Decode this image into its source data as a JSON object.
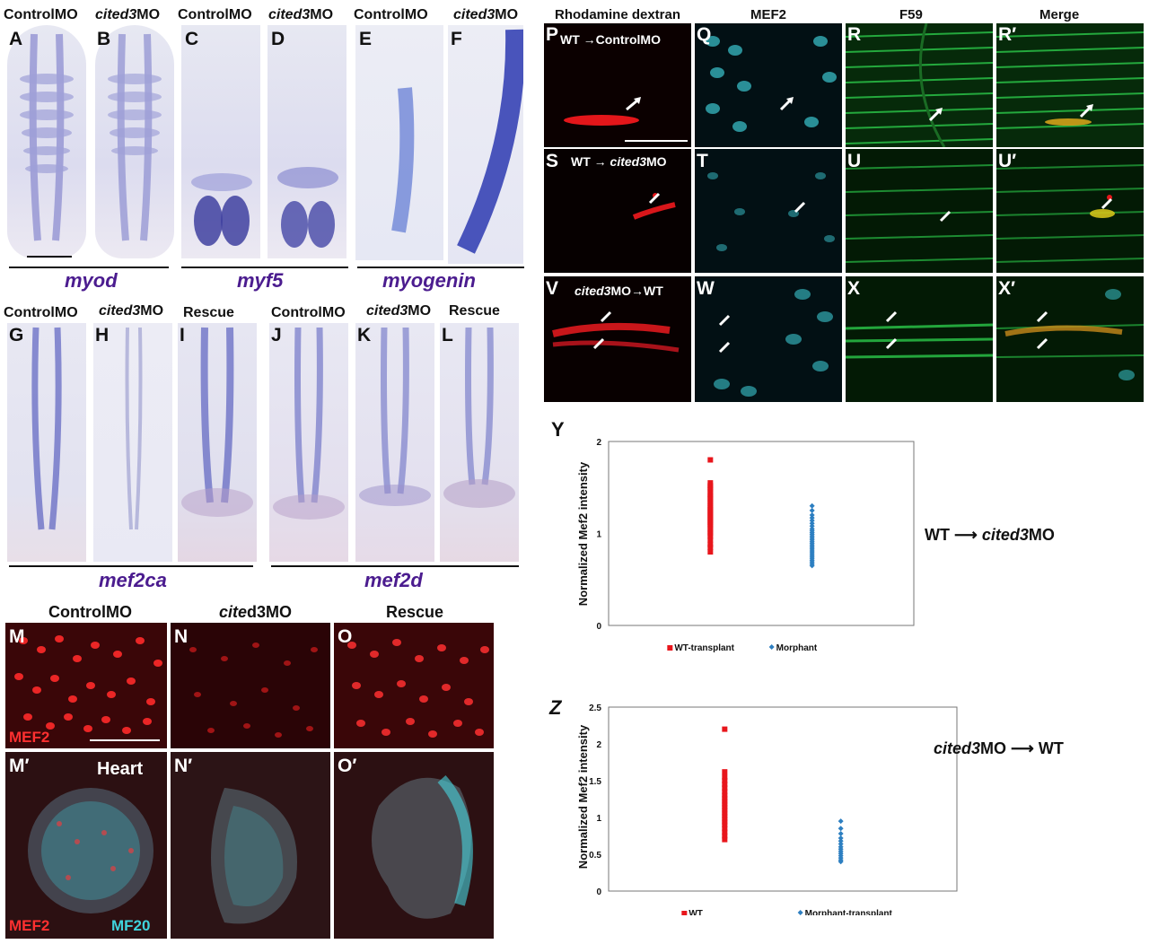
{
  "panel_letters": {
    "A": "A",
    "B": "B",
    "C": "C",
    "D": "D",
    "E": "E",
    "F": "F",
    "G": "G",
    "H": "H",
    "I": "I",
    "J": "J",
    "K": "K",
    "L": "L",
    "M": "M",
    "N": "N",
    "O": "O",
    "Mp": "M′",
    "Np": "N′",
    "Op": "O′",
    "P": "P",
    "Q": "Q",
    "R": "R",
    "Rp": "R′",
    "S": "S",
    "T": "T",
    "U": "U",
    "Up": "U′",
    "V": "V",
    "W": "W",
    "X": "X",
    "Xp": "X′",
    "Y": "Y",
    "Z": "Z"
  },
  "conditions": {
    "control": "ControlMO",
    "cited_italic": "cited3",
    "mo_suffix": "MO",
    "rescue": "Rescue",
    "cite_italic": "cite",
    "d3mo": "d3MO",
    "wt": "WT"
  },
  "genes": {
    "myod": "myod",
    "myf5": "myf5",
    "myogenin": "myogenin",
    "mef2ca": "mef2ca",
    "mef2d": "mef2d"
  },
  "stain_labels": {
    "mef2": "MEF2",
    "mf20": "MF20",
    "heart": "Heart"
  },
  "column_headers": {
    "rhodamine": "Rhodamine dextran",
    "mef2": "MEF2",
    "f59": "F59",
    "merge": "Merge"
  },
  "transplant_labels": {
    "wt_control": "ControlMO",
    "arrow": "→"
  },
  "colors": {
    "ish_stain": "#3b3ea6",
    "gene_label": "#4b1c8f",
    "red_series": "#e8161c",
    "blue_series": "#2d7fc1",
    "cyan": "#3fd3dc",
    "green": "#2cc94a"
  },
  "chart_data": [
    {
      "type": "scatter",
      "panel": "Y",
      "ylabel": "Normalized Mef2 intensity",
      "ylim": [
        0,
        2
      ],
      "yticks": [
        "0",
        "1",
        "2"
      ],
      "grid": false,
      "legend_position": "bottom",
      "side_label_prefix": "WT",
      "side_label_target_italic": "cited3",
      "side_label_target_suffix": "MO",
      "series": [
        {
          "name": "WT-transplant",
          "color": "#e8161c",
          "marker": "square",
          "values": [
            1.8,
            1.55,
            1.52,
            1.5,
            1.48,
            1.45,
            1.42,
            1.4,
            1.38,
            1.35,
            1.33,
            1.3,
            1.28,
            1.26,
            1.24,
            1.22,
            1.2,
            1.18,
            1.16,
            1.14,
            1.12,
            1.1,
            1.08,
            1.05,
            1.02,
            1.0,
            0.97,
            0.93,
            0.88,
            0.85,
            0.8
          ]
        },
        {
          "name": "Morphant",
          "color": "#2d7fc1",
          "marker": "diamond",
          "values": [
            1.3,
            1.25,
            1.2,
            1.17,
            1.14,
            1.11,
            1.08,
            1.05,
            1.03,
            1.01,
            0.99,
            0.97,
            0.95,
            0.93,
            0.91,
            0.89,
            0.87,
            0.85,
            0.83,
            0.81,
            0.79,
            0.77,
            0.75,
            0.73,
            0.71,
            0.69,
            0.67,
            0.65
          ]
        }
      ]
    },
    {
      "type": "scatter",
      "panel": "Z",
      "ylabel": "Normalized Mef2 intensity",
      "ylim": [
        0,
        2.5
      ],
      "yticks": [
        "0",
        "0.5",
        "1",
        "1.5",
        "2",
        "2.5"
      ],
      "grid": false,
      "legend_position": "bottom",
      "side_label_source_italic": "cited3",
      "side_label_source_suffix": "MO",
      "side_label_target": "WT",
      "series": [
        {
          "name": "WT",
          "color": "#e8161c",
          "marker": "square",
          "values": [
            2.2,
            1.62,
            1.55,
            1.5,
            1.45,
            1.4,
            1.35,
            1.3,
            1.26,
            1.22,
            1.18,
            1.14,
            1.1,
            1.06,
            1.02,
            0.98,
            0.94,
            0.9,
            0.85,
            0.8,
            0.75,
            0.7
          ]
        },
        {
          "name": "Morphant-transplant",
          "color": "#2d7fc1",
          "marker": "diamond",
          "values": [
            0.95,
            0.85,
            0.78,
            0.72,
            0.68,
            0.64,
            0.6,
            0.57,
            0.54,
            0.51,
            0.48,
            0.45,
            0.42,
            0.4
          ]
        }
      ]
    }
  ]
}
